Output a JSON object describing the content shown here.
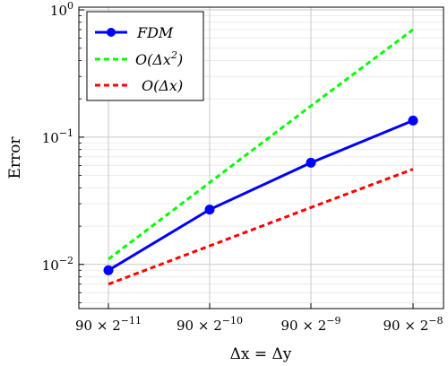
{
  "chart_data": {
    "type": "line",
    "xlabel": "Δx = Δy",
    "ylabel": "Error",
    "yscale": "log",
    "ylim": [
      0.0045,
      1.05
    ],
    "grid": true,
    "legend_position": "top-left",
    "x_ticks": [
      {
        "base": "90 × 2",
        "exp": "−11"
      },
      {
        "base": "90 × 2",
        "exp": "−10"
      },
      {
        "base": "90 × 2",
        "exp": "−9"
      },
      {
        "base": "90 × 2",
        "exp": "−8"
      }
    ],
    "y_ticks": [
      {
        "value": 0.01,
        "base": "10",
        "exp": "−2"
      },
      {
        "value": 0.1,
        "base": "10",
        "exp": "−1"
      },
      {
        "value": 1,
        "base": "10",
        "exp": "0"
      }
    ],
    "series": [
      {
        "name": "FDM",
        "color": "#0000ff",
        "style": "solid-markers",
        "values": [
          0.009,
          0.027,
          0.063,
          0.135
        ]
      },
      {
        "name": "O(Δx²)",
        "color": "#00ff00",
        "style": "dashed",
        "values": [
          0.011,
          0.044,
          0.176,
          0.7
        ]
      },
      {
        "name": "O(Δx)",
        "color": "#ff0000",
        "style": "dashed",
        "values": [
          0.007,
          0.014,
          0.028,
          0.056
        ]
      }
    ],
    "legend": {
      "fdm": "FDM",
      "o2_prefix": "O(Δx",
      "o2_exp": "2",
      "o2_suffix": ")",
      "o1": "O(Δx)"
    }
  }
}
